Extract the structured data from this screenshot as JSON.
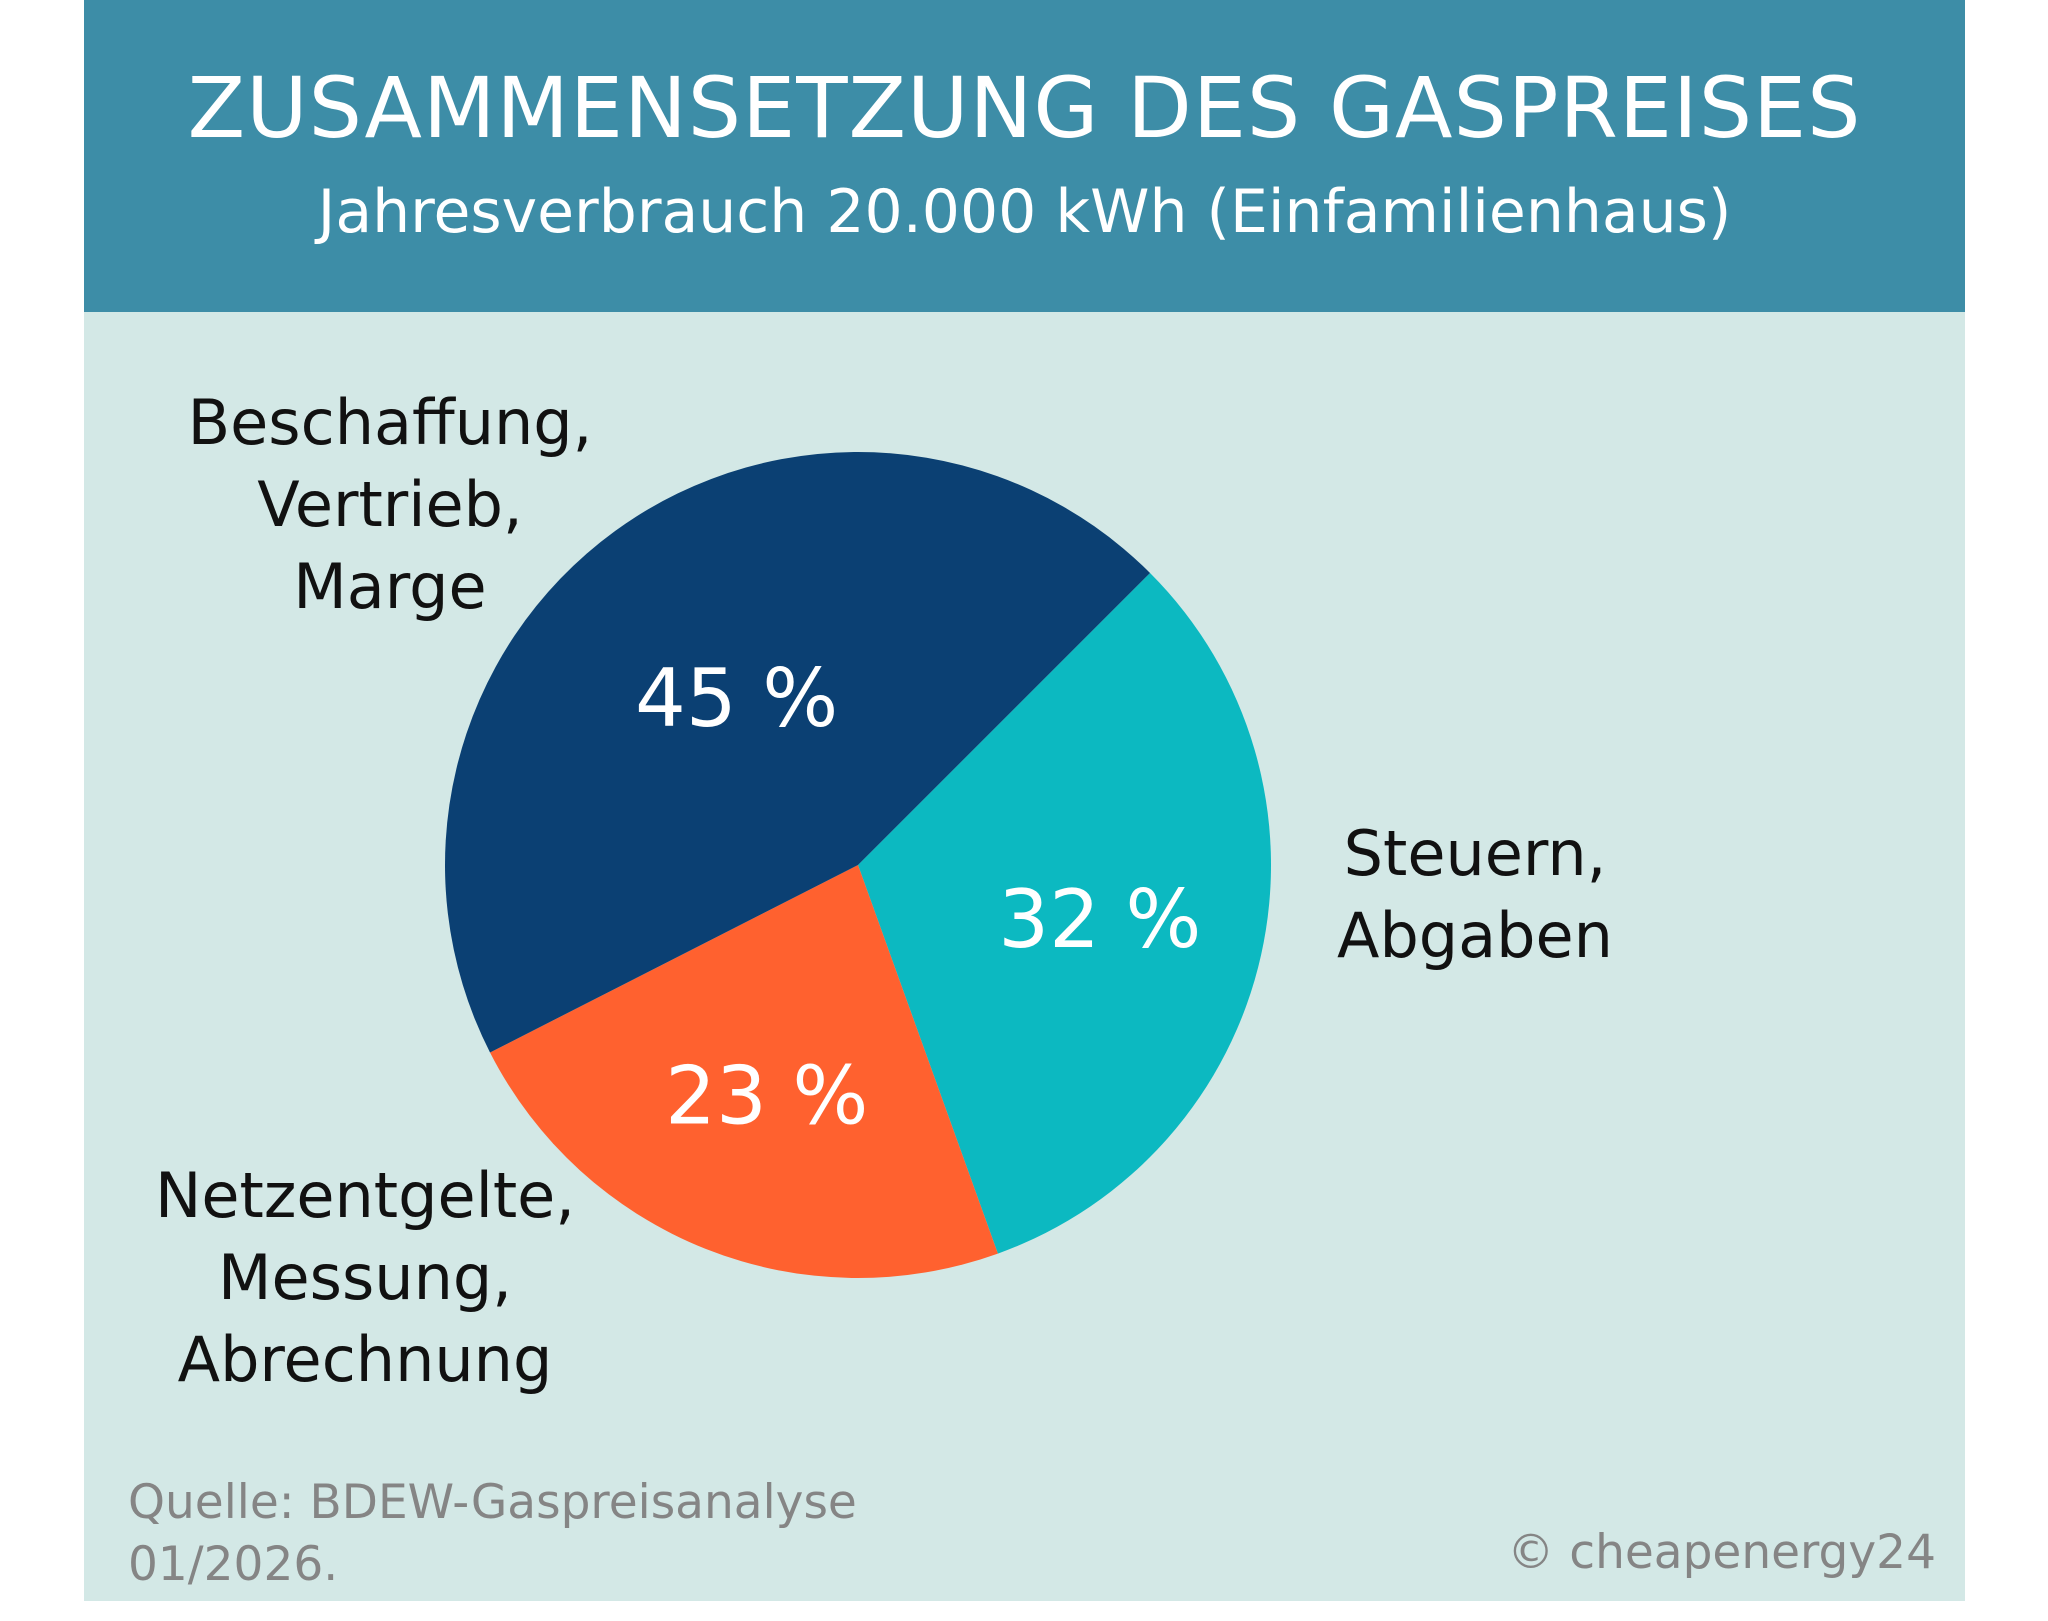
{
  "header": {
    "title": "ZUSAMMENSETZUNG DES GASPREISES",
    "subtitle": "Jahresverbrauch 20.000 kWh (Einfamilienhaus)"
  },
  "chart_data": {
    "type": "pie",
    "title": "ZUSAMMENSETZUNG DES GASPREISES",
    "subtitle": "Jahresverbrauch 20.000 kWh (Einfamilienhaus)",
    "slices": [
      {
        "label": "Steuern, Abgaben",
        "value": 32,
        "display": "32 %",
        "color": "#0cb9c1"
      },
      {
        "label": "Netzentgelte, Messung, Abrechnung",
        "value": 23,
        "display": "23 %",
        "color": "#ff612f"
      },
      {
        "label": "Beschaffung, Vertrieb, Marge",
        "value": 45,
        "display": "45 %",
        "color": "#0b4073"
      }
    ],
    "label_lines": [
      [
        "Steuern,",
        "Abgaben"
      ],
      [
        "Netzentgelte,",
        "Messung,",
        "Abrechnung"
      ],
      [
        "Beschaffung,",
        "Vertrieb,",
        "Marge"
      ]
    ]
  },
  "footer": {
    "source_line1": "Quelle: BDEW-Gaspreisanalyse",
    "source_line2": "01/2026.",
    "copyright": "© cheapenergy24"
  }
}
